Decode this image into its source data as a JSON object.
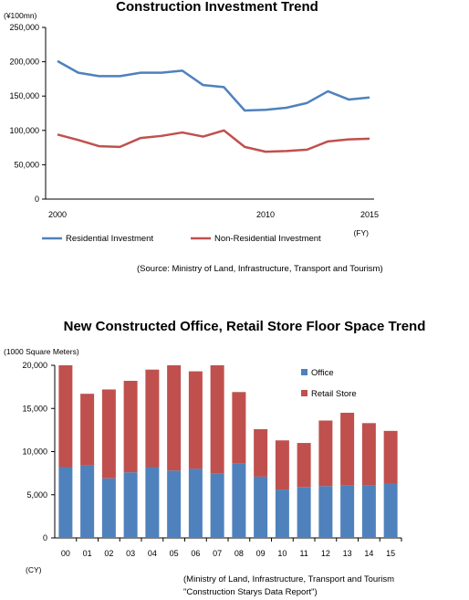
{
  "chart_data": [
    {
      "type": "line",
      "title": "Construction  Investment Trend",
      "ylabel": "(¥100mn)",
      "xlabel": "(FY)",
      "x": [
        2000,
        2001,
        2002,
        2003,
        2004,
        2005,
        2006,
        2007,
        2008,
        2009,
        2010,
        2011,
        2012,
        2013,
        2014,
        2015
      ],
      "x_tick_labels": [
        "2000",
        "2010",
        "2015"
      ],
      "x_tick_values": [
        2000,
        2010,
        2015
      ],
      "ylim": [
        0,
        250000
      ],
      "y_ticks": [
        "0",
        "50,000",
        "100,000",
        "150,000",
        "200,000",
        "250,000"
      ],
      "y_tick_values": [
        0,
        50000,
        100000,
        150000,
        200000,
        250000
      ],
      "grid": false,
      "legend_position": "bottom",
      "series": [
        {
          "name": "Residential Investment",
          "color": "#4F81BD",
          "values": [
            201000,
            184000,
            179000,
            179000,
            184000,
            184000,
            187000,
            166000,
            163000,
            129000,
            130000,
            133000,
            140000,
            157000,
            145000,
            148000
          ]
        },
        {
          "name": "Non-Residential Investment",
          "color": "#C0504D",
          "values": [
            94000,
            86000,
            77000,
            76000,
            89000,
            92000,
            97000,
            91000,
            100000,
            76000,
            69000,
            70000,
            72000,
            84000,
            87000,
            88000
          ]
        }
      ],
      "source": "(Source:  Ministry of Land, Infrastructure, Transport and Tourism)"
    },
    {
      "type": "bar",
      "stacked": true,
      "title": "New Constructed  Office,  Retail Store  Floor  Space Trend",
      "ylabel": "(1000 Square Meters)",
      "xlabel": "(CY)",
      "categories": [
        "00",
        "01",
        "02",
        "03",
        "04",
        "05",
        "06",
        "07",
        "08",
        "09",
        "10",
        "11",
        "12",
        "13",
        "14",
        "15"
      ],
      "ylim": [
        0,
        20000
      ],
      "y_ticks": [
        "0",
        "5,000",
        "10,000",
        "15,000",
        "20,000"
      ],
      "y_tick_values": [
        0,
        5000,
        10000,
        15000,
        20000
      ],
      "grid": false,
      "legend_position": "top-right",
      "series": [
        {
          "name": "Office",
          "color": "#4F81BD",
          "values": [
            8200,
            8400,
            6900,
            7600,
            8200,
            7800,
            8000,
            7500,
            8600,
            7100,
            5600,
            5900,
            6000,
            6100,
            6100,
            6300
          ]
        },
        {
          "name": "Retail Store",
          "color": "#C0504D",
          "values": [
            11800,
            8300,
            10300,
            10600,
            11300,
            12200,
            11300,
            12500,
            8300,
            5500,
            5700,
            5100,
            7600,
            8400,
            7200,
            6100
          ]
        }
      ],
      "source_line1": "(Ministry of Land, Infrastructure,  Transport and Tourism",
      "source_line2": "\"Construction Starys Data Report\")"
    }
  ]
}
